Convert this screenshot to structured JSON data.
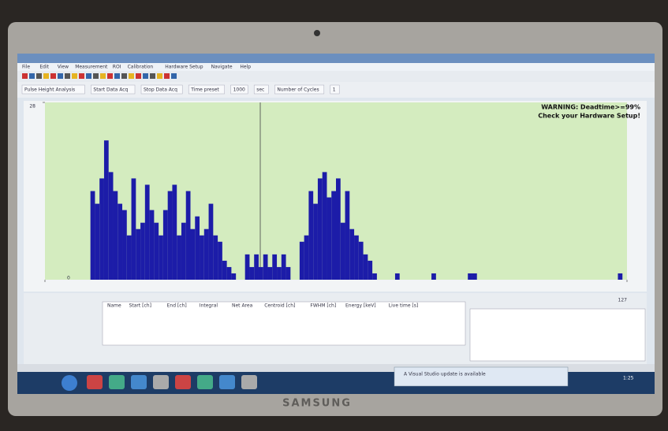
{
  "window": {
    "menu": [
      "File",
      "Edit",
      "View",
      "Measurement",
      "ROI",
      "Calibration",
      "Hardware Setup",
      "Navigate",
      "Help"
    ],
    "toolbar": [
      "Pulse Height Analysis",
      "Start Data Acq",
      "Stop Data Acq",
      "Time preset",
      "1000",
      "sec",
      "Number of Cycles",
      "1"
    ]
  },
  "chart_data": {
    "type": "bar",
    "annotations": [
      "WARNING: Deadtime>=99%",
      "Check your Hardware Setup!"
    ],
    "channels": [
      10,
      11,
      12,
      13,
      14,
      15,
      16,
      17,
      18,
      19,
      20,
      21,
      22,
      23,
      24,
      25,
      26,
      27,
      28,
      29,
      30,
      31,
      32,
      33,
      34,
      35,
      36,
      37,
      38,
      39,
      40,
      41,
      44,
      45,
      46,
      47,
      48,
      49,
      50,
      51,
      52,
      53,
      56,
      57,
      58,
      59,
      60,
      61,
      62,
      63,
      64,
      65,
      66,
      67,
      68,
      69,
      70,
      71,
      72,
      77,
      85,
      93,
      94,
      126
    ],
    "counts": [
      14,
      12,
      16,
      22,
      17,
      14,
      12,
      11,
      7,
      16,
      8,
      9,
      15,
      11,
      9,
      7,
      11,
      14,
      15,
      7,
      9,
      14,
      8,
      10,
      7,
      8,
      12,
      7,
      6,
      3,
      2,
      1,
      4,
      2,
      4,
      2,
      4,
      2,
      4,
      2,
      4,
      2,
      6,
      7,
      14,
      12,
      16,
      17,
      13,
      14,
      16,
      9,
      14,
      8,
      7,
      6,
      4,
      3,
      1,
      1,
      1,
      1,
      1,
      1
    ],
    "color": "#1c1ca8",
    "xlim": [
      0,
      127
    ],
    "xticks": [
      0,
      127
    ],
    "ylim": [
      0,
      28
    ],
    "yticks": [
      28
    ]
  },
  "panel": {
    "columns": [
      "Name",
      "Start [ch]",
      "End [ch]",
      "Integral",
      "Net Area",
      "Centroid [ch]",
      "FWHM [ch]",
      "Energy [keV]",
      "Live time [s]"
    ]
  },
  "taskbar": {
    "notification": "A Visual Studio update is available",
    "time": "1:25"
  },
  "brand": "SAMSUNG"
}
